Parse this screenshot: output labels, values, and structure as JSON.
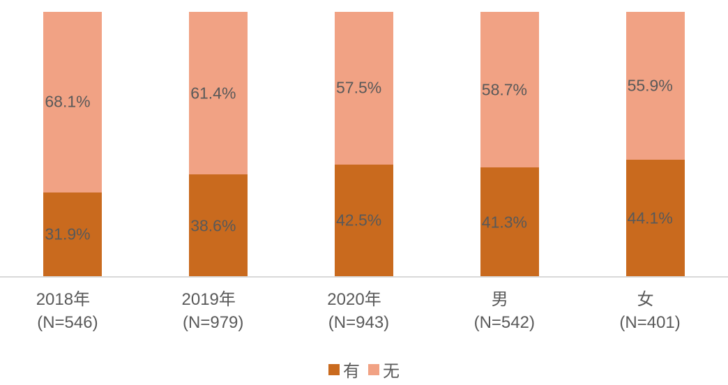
{
  "chart_data": {
    "type": "bar",
    "stacked": true,
    "orientation": "vertical",
    "title": "",
    "xlabel": "",
    "ylabel": "",
    "ylim": [
      0,
      100
    ],
    "grid": false,
    "legend_position": "bottom-center",
    "axis_line_color": "#d9d9d9",
    "value_label_color": "#595959",
    "category_label_color": "#595959",
    "categories": [
      {
        "line1": "2018年",
        "line2": "(N=546)"
      },
      {
        "line1": "2019年",
        "line2": "(N=979)"
      },
      {
        "line1": "2020年",
        "line2": "(N=943)"
      },
      {
        "line1": "男",
        "line2": "(N=542)"
      },
      {
        "line1": "女",
        "line2": "(N=401)"
      }
    ],
    "series": [
      {
        "name": "有",
        "color": "#c96a1e",
        "values": [
          31.9,
          38.6,
          42.5,
          41.3,
          44.1
        ],
        "display_values": [
          "31.9%",
          "38.6%",
          "42.5%",
          "41.3%",
          "44.1%"
        ]
      },
      {
        "name": "无",
        "color": "#f1a284",
        "values": [
          68.1,
          61.4,
          57.5,
          58.7,
          55.9
        ],
        "display_values": [
          "68.1%",
          "61.4%",
          "57.5%",
          "58.7%",
          "55.9%"
        ]
      }
    ]
  }
}
